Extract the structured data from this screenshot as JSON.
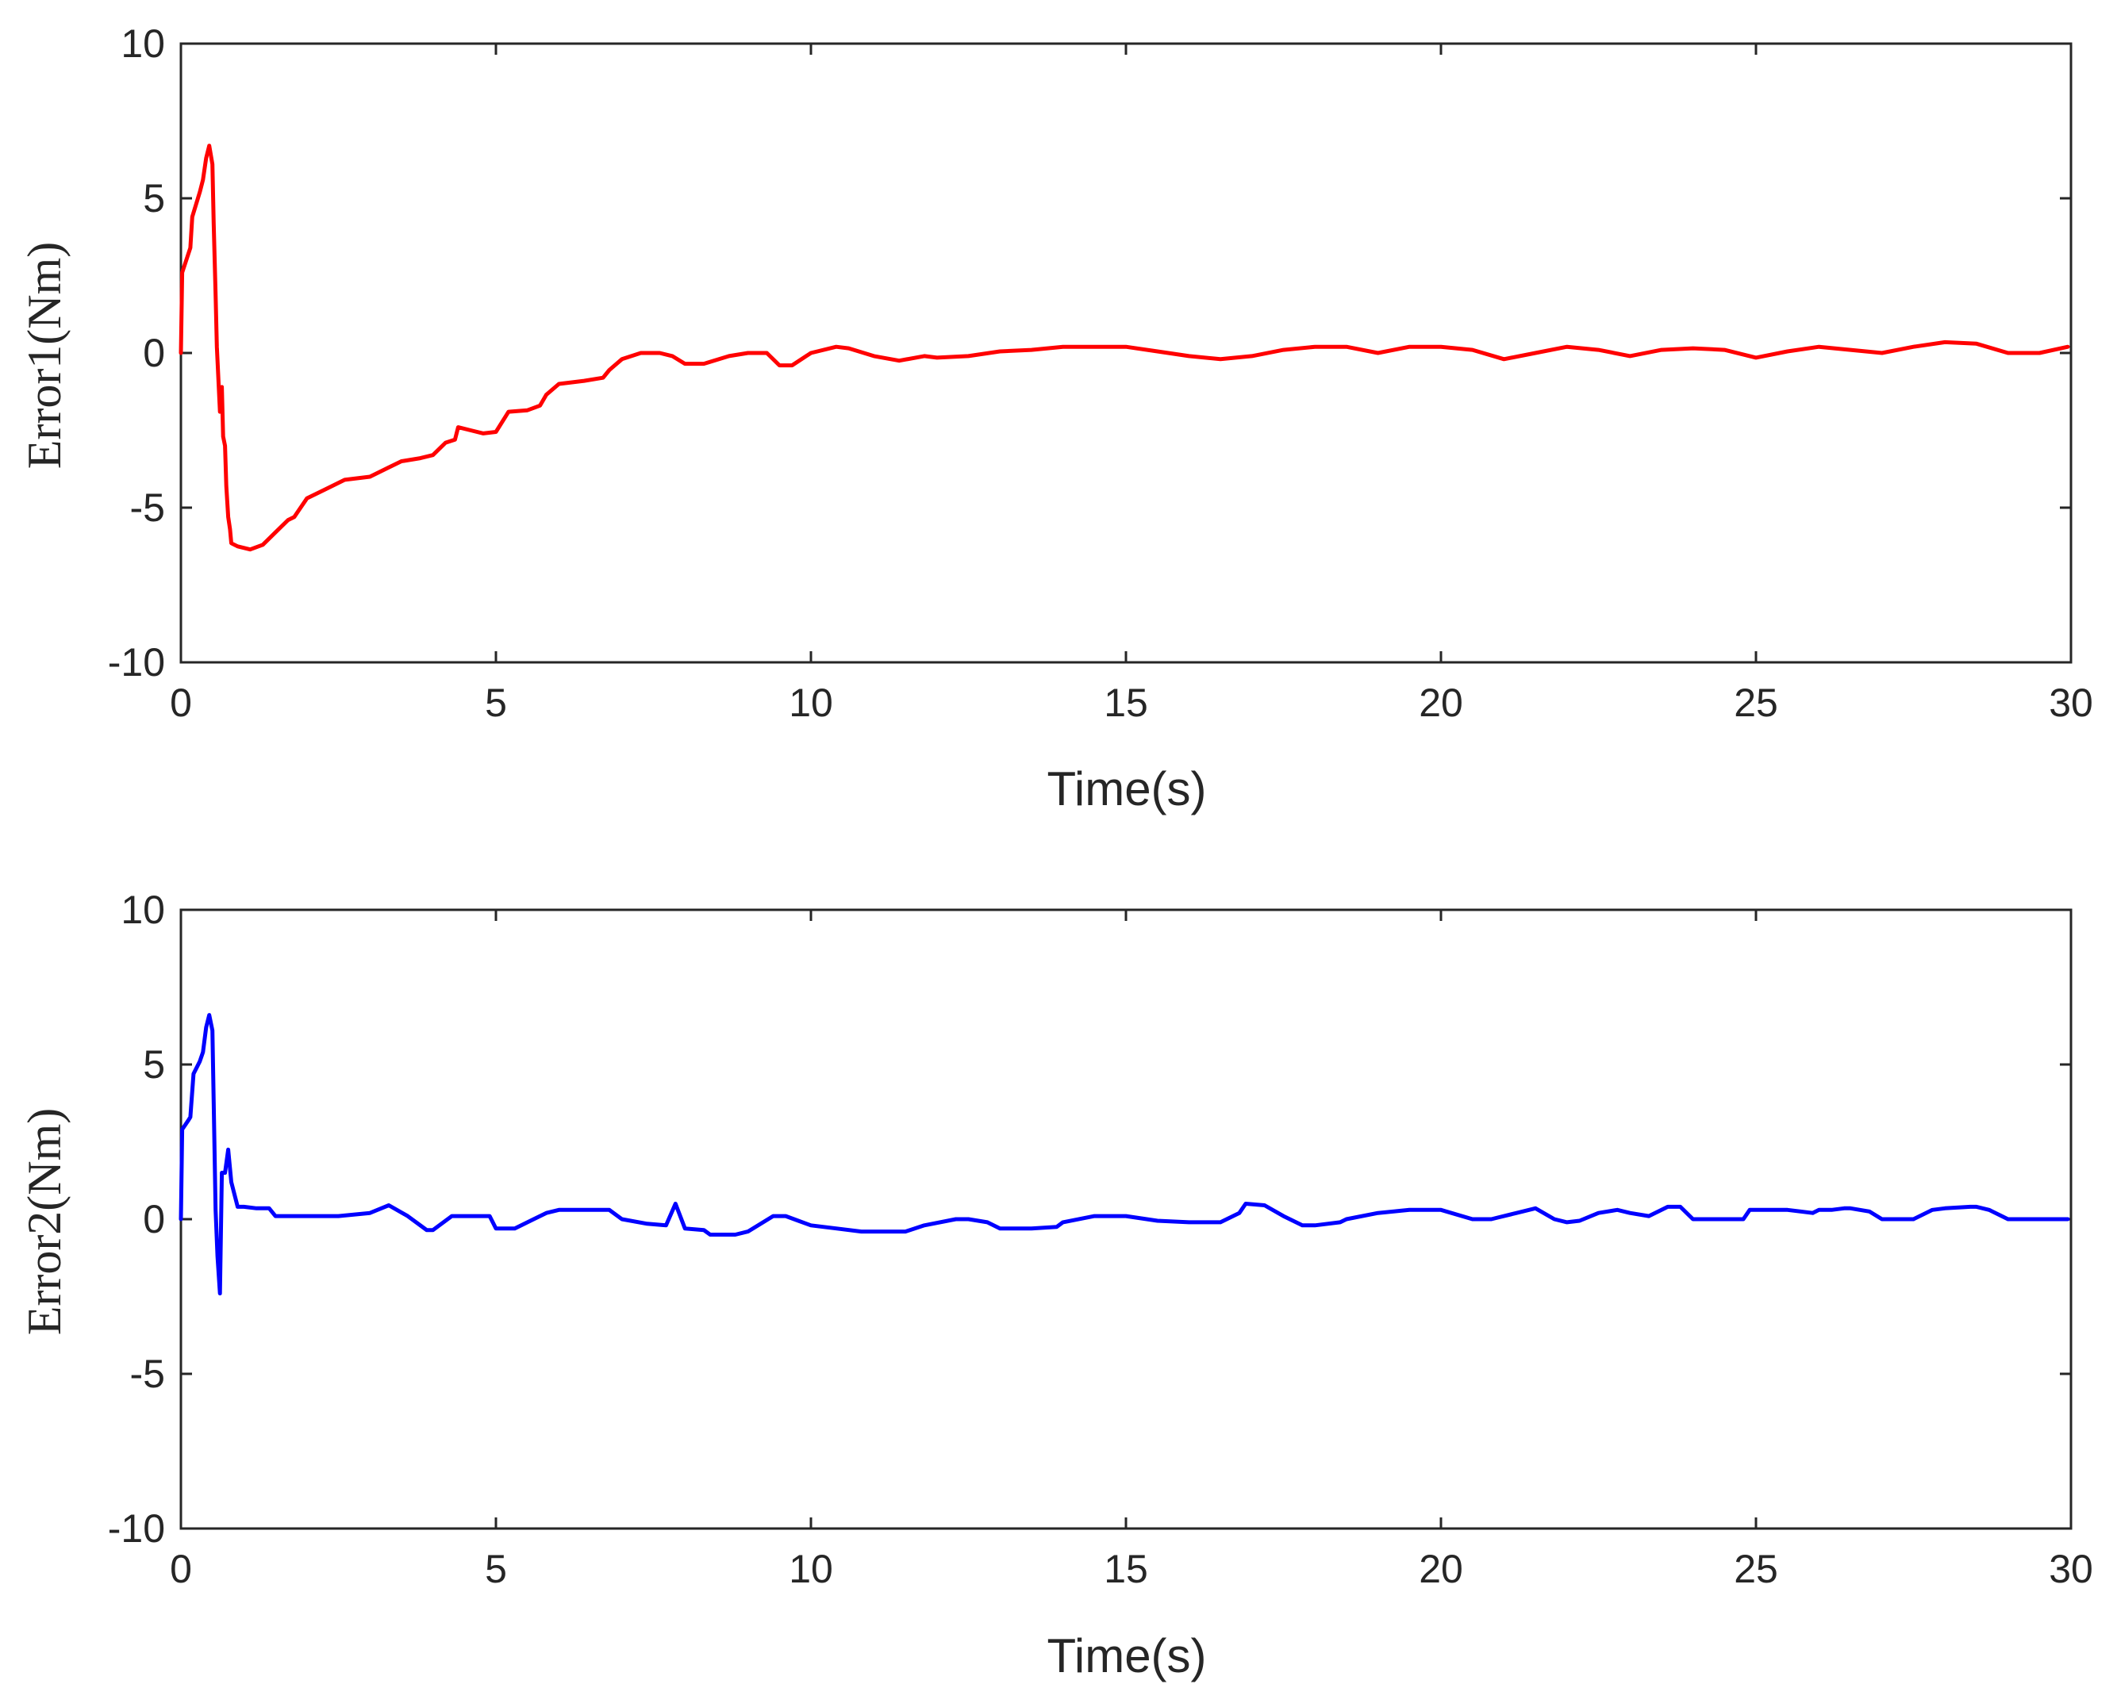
{
  "chart_data": [
    {
      "type": "line",
      "title": "",
      "xlabel": "Time(s)",
      "ylabel": "Error1(Nm)",
      "xlim": [
        0,
        30
      ],
      "ylim": [
        -10,
        10
      ],
      "xticks": [
        0,
        5,
        10,
        15,
        20,
        25,
        30
      ],
      "yticks": [
        -10,
        -5,
        0,
        5,
        10
      ],
      "xtick_labels": [
        "0",
        "5",
        "10",
        "15",
        "20",
        "25",
        "30"
      ],
      "ytick_labels": [
        "-10",
        "-5",
        "0",
        "5",
        "10"
      ],
      "grid": false,
      "series": [
        {
          "name": "Error1",
          "color": "#ff0000",
          "x": [
            0,
            0.02,
            0.15,
            0.18,
            0.3,
            0.35,
            0.4,
            0.45,
            0.5,
            0.52,
            0.55,
            0.57,
            0.62,
            0.65,
            0.67,
            0.7,
            0.72,
            0.75,
            0.78,
            0.8,
            0.9,
            1.1,
            1.3,
            1.5,
            1.7,
            1.8,
            2.0,
            2.3,
            2.6,
            3.0,
            3.3,
            3.5,
            3.8,
            4.0,
            4.2,
            4.35,
            4.4,
            4.6,
            4.8,
            5.0,
            5.2,
            5.5,
            5.7,
            5.8,
            6.0,
            6.4,
            6.7,
            6.8,
            7.0,
            7.3,
            7.6,
            7.8,
            8.0,
            8.3,
            8.7,
            9.0,
            9.3,
            9.5,
            9.7,
            10.0,
            10.4,
            10.6,
            11.0,
            11.4,
            11.8,
            12.0,
            12.5,
            13.0,
            13.5,
            14.0,
            14.5,
            15.0,
            15.5,
            16.0,
            16.5,
            17.0,
            17.5,
            18.0,
            18.5,
            19.0,
            19.5,
            20.0,
            20.5,
            21.0,
            21.5,
            22.0,
            22.5,
            23.0,
            23.5,
            24.0,
            24.5,
            25.0,
            25.5,
            26.0,
            26.5,
            27.0,
            27.5,
            28.0,
            28.5,
            29.0,
            29.5,
            29.95
          ],
          "y": [
            0,
            2.6,
            3.4,
            4.4,
            5.2,
            5.6,
            6.3,
            6.7,
            6.1,
            4.2,
            1.9,
            0.2,
            -1.9,
            -1.1,
            -2.7,
            -3.0,
            -4.3,
            -5.3,
            -5.7,
            -6.15,
            -6.25,
            -6.35,
            -6.2,
            -5.8,
            -5.4,
            -5.3,
            -4.7,
            -4.4,
            -4.1,
            -4.0,
            -3.7,
            -3.5,
            -3.4,
            -3.3,
            -2.9,
            -2.8,
            -2.4,
            -2.5,
            -2.6,
            -2.55,
            -1.9,
            -1.85,
            -1.7,
            -1.35,
            -1.0,
            -0.9,
            -0.8,
            -0.55,
            -0.2,
            0.0,
            0.0,
            -0.1,
            -0.35,
            -0.35,
            -0.1,
            0.0,
            0.0,
            -0.4,
            -0.4,
            0.0,
            0.2,
            0.15,
            -0.1,
            -0.25,
            -0.1,
            -0.15,
            -0.1,
            0.05,
            0.1,
            0.2,
            0.2,
            0.2,
            0.05,
            -0.1,
            -0.2,
            -0.1,
            0.1,
            0.2,
            0.2,
            0.0,
            0.2,
            0.2,
            0.1,
            -0.2,
            0.0,
            0.2,
            0.1,
            -0.1,
            0.1,
            0.15,
            0.1,
            -0.15,
            0.05,
            0.2,
            0.1,
            0.0,
            0.2,
            0.35,
            0.3,
            0.0,
            0.0,
            0.2
          ]
        }
      ]
    },
    {
      "type": "line",
      "title": "",
      "xlabel": "Time(s)",
      "ylabel": "Error2(Nm)",
      "xlim": [
        0,
        30
      ],
      "ylim": [
        -10,
        10
      ],
      "xticks": [
        0,
        5,
        10,
        15,
        20,
        25,
        30
      ],
      "yticks": [
        -10,
        -5,
        0,
        5,
        10
      ],
      "xtick_labels": [
        "0",
        "5",
        "10",
        "15",
        "20",
        "25",
        "30"
      ],
      "ytick_labels": [
        "-10",
        "-5",
        "0",
        "5",
        "10"
      ],
      "grid": false,
      "series": [
        {
          "name": "Error2",
          "color": "#0000ff",
          "x": [
            0,
            0.02,
            0.12,
            0.15,
            0.2,
            0.3,
            0.35,
            0.4,
            0.45,
            0.5,
            0.52,
            0.55,
            0.58,
            0.62,
            0.65,
            0.7,
            0.75,
            0.8,
            0.9,
            1.0,
            1.2,
            1.4,
            1.5,
            2.0,
            2.5,
            3.0,
            3.3,
            3.6,
            3.9,
            4.0,
            4.3,
            4.5,
            4.9,
            5.0,
            5.3,
            5.6,
            5.8,
            6.0,
            6.5,
            6.8,
            7.0,
            7.4,
            7.7,
            7.85,
            8.0,
            8.3,
            8.4,
            8.8,
            9.0,
            9.4,
            9.6,
            9.8,
            10.0,
            10.4,
            10.8,
            11.3,
            11.5,
            11.8,
            12.3,
            12.5,
            12.8,
            13.0,
            13.5,
            13.9,
            14.0,
            14.5,
            15.0,
            15.5,
            16.0,
            16.5,
            16.8,
            16.9,
            17.2,
            17.5,
            17.8,
            18.0,
            18.4,
            18.5,
            19.0,
            19.5,
            20.0,
            20.5,
            20.8,
            20.9,
            21.2,
            21.5,
            21.8,
            22.0,
            22.2,
            22.5,
            22.8,
            23.0,
            23.3,
            23.6,
            23.8,
            24.0,
            24.5,
            24.8,
            24.9,
            25.4,
            25.5,
            25.9,
            26.0,
            26.2,
            26.4,
            26.5,
            26.8,
            27.0,
            27.3,
            27.5,
            27.8,
            28.0,
            28.4,
            28.5,
            28.7,
            29.0,
            29.5,
            29.95
          ],
          "y": [
            0,
            2.9,
            3.2,
            3.3,
            4.7,
            5.1,
            5.4,
            6.2,
            6.6,
            6.1,
            3.8,
            0.3,
            -1.2,
            -2.4,
            1.5,
            1.5,
            2.25,
            1.2,
            0.4,
            0.4,
            0.35,
            0.35,
            0.1,
            0.1,
            0.1,
            0.2,
            0.45,
            0.1,
            -0.35,
            -0.35,
            0.1,
            0.1,
            0.1,
            -0.3,
            -0.3,
            0.0,
            0.2,
            0.3,
            0.3,
            0.3,
            0.0,
            -0.15,
            -0.2,
            0.5,
            -0.3,
            -0.35,
            -0.5,
            -0.5,
            -0.4,
            0.1,
            0.1,
            -0.05,
            -0.2,
            -0.3,
            -0.4,
            -0.4,
            -0.4,
            -0.2,
            0.0,
            0.0,
            -0.1,
            -0.3,
            -0.3,
            -0.25,
            -0.1,
            0.1,
            0.1,
            -0.05,
            -0.1,
            -0.1,
            0.2,
            0.5,
            0.45,
            0.1,
            -0.2,
            -0.2,
            -0.1,
            0.0,
            0.2,
            0.3,
            0.3,
            0.0,
            0.0,
            0.05,
            0.2,
            0.35,
            0.0,
            -0.1,
            -0.05,
            0.2,
            0.3,
            0.2,
            0.1,
            0.4,
            0.4,
            0.0,
            0.0,
            0.0,
            0.3,
            0.3,
            0.3,
            0.2,
            0.3,
            0.3,
            0.35,
            0.35,
            0.25,
            0.0,
            0.0,
            0.0,
            0.3,
            0.35,
            0.4,
            0.4,
            0.3,
            0.0,
            0.0,
            0.0
          ]
        }
      ]
    }
  ]
}
